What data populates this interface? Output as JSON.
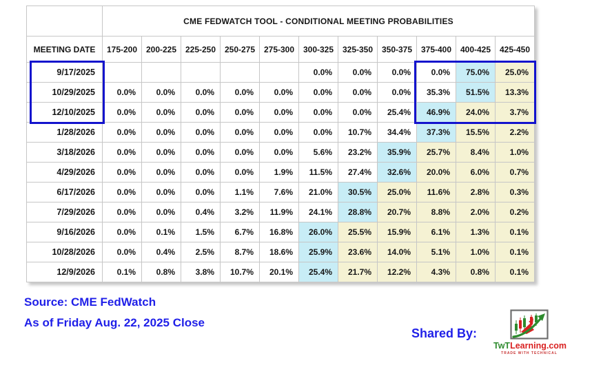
{
  "chart_data": {
    "type": "table",
    "title": "CME FEDWATCH TOOL - CONDITIONAL MEETING PROBABILITIES",
    "row_header": "MEETING DATE",
    "columns": [
      "175-200",
      "200-225",
      "225-250",
      "250-275",
      "275-300",
      "300-325",
      "325-350",
      "350-375",
      "375-400",
      "400-425",
      "425-450"
    ],
    "rows": [
      {
        "date": "9/17/2025",
        "values": [
          "",
          "",
          "",
          "",
          "",
          "0.0%",
          "0.0%",
          "0.0%",
          "0.0%",
          "75.0%",
          "25.0%"
        ],
        "blue_index": 9
      },
      {
        "date": "10/29/2025",
        "values": [
          "0.0%",
          "0.0%",
          "0.0%",
          "0.0%",
          "0.0%",
          "0.0%",
          "0.0%",
          "0.0%",
          "35.3%",
          "51.5%",
          "13.3%"
        ],
        "blue_index": 9
      },
      {
        "date": "12/10/2025",
        "values": [
          "0.0%",
          "0.0%",
          "0.0%",
          "0.0%",
          "0.0%",
          "0.0%",
          "0.0%",
          "25.4%",
          "46.9%",
          "24.0%",
          "3.7%"
        ],
        "blue_index": 8
      },
      {
        "date": "1/28/2026",
        "values": [
          "0.0%",
          "0.0%",
          "0.0%",
          "0.0%",
          "0.0%",
          "0.0%",
          "10.7%",
          "34.4%",
          "37.3%",
          "15.5%",
          "2.2%"
        ],
        "blue_index": 8
      },
      {
        "date": "3/18/2026",
        "values": [
          "0.0%",
          "0.0%",
          "0.0%",
          "0.0%",
          "0.0%",
          "5.6%",
          "23.2%",
          "35.9%",
          "25.7%",
          "8.4%",
          "1.0%"
        ],
        "blue_index": 7
      },
      {
        "date": "4/29/2026",
        "values": [
          "0.0%",
          "0.0%",
          "0.0%",
          "0.0%",
          "1.9%",
          "11.5%",
          "27.4%",
          "32.6%",
          "20.0%",
          "6.0%",
          "0.7%"
        ],
        "blue_index": 7
      },
      {
        "date": "6/17/2026",
        "values": [
          "0.0%",
          "0.0%",
          "0.0%",
          "1.1%",
          "7.6%",
          "21.0%",
          "30.5%",
          "25.0%",
          "11.6%",
          "2.8%",
          "0.3%"
        ],
        "blue_index": 6
      },
      {
        "date": "7/29/2026",
        "values": [
          "0.0%",
          "0.0%",
          "0.4%",
          "3.2%",
          "11.9%",
          "24.1%",
          "28.8%",
          "20.7%",
          "8.8%",
          "2.0%",
          "0.2%"
        ],
        "blue_index": 6
      },
      {
        "date": "9/16/2026",
        "values": [
          "0.0%",
          "0.1%",
          "1.5%",
          "6.7%",
          "16.8%",
          "26.0%",
          "25.5%",
          "15.9%",
          "6.1%",
          "1.3%",
          "0.1%"
        ],
        "blue_index": 5
      },
      {
        "date": "10/28/2026",
        "values": [
          "0.0%",
          "0.4%",
          "2.5%",
          "8.7%",
          "18.6%",
          "25.9%",
          "23.6%",
          "14.0%",
          "5.1%",
          "1.0%",
          "0.1%"
        ],
        "blue_index": 5
      },
      {
        "date": "12/9/2026",
        "values": [
          "0.1%",
          "0.8%",
          "3.8%",
          "10.7%",
          "20.1%",
          "25.4%",
          "21.7%",
          "12.2%",
          "4.3%",
          "0.8%",
          "0.1%"
        ],
        "blue_index": 5
      }
    ],
    "highlight_rule": "cell at blue_index is light blue (modal probability); all cells right of it are light yellow",
    "boxed": {
      "date_rows": [
        "9/17/2025",
        "10/29/2025",
        "12/10/2025"
      ],
      "value_columns": [
        "375-400",
        "400-425",
        "425-450"
      ],
      "description": "thick blue rectangles outline the first three meeting dates and their 375-450 probability cells"
    }
  },
  "colors": {
    "highlight_blue": "#c8edf6",
    "highlight_yellow": "#f5f2d3",
    "box_border_blue": "#1313cd",
    "footer_text_blue": "#1f1fe8",
    "grid_border": "#c6c6c6"
  },
  "footer": {
    "source": "Source: CME FedWatch",
    "as_of": "As of Friday Aug. 22, 2025 Close",
    "shared_by": "Shared By:",
    "logo": {
      "green_part": "TwT",
      "red_part": "Learning.com",
      "tagline": "TRADE WITH TECHNICAL"
    }
  }
}
